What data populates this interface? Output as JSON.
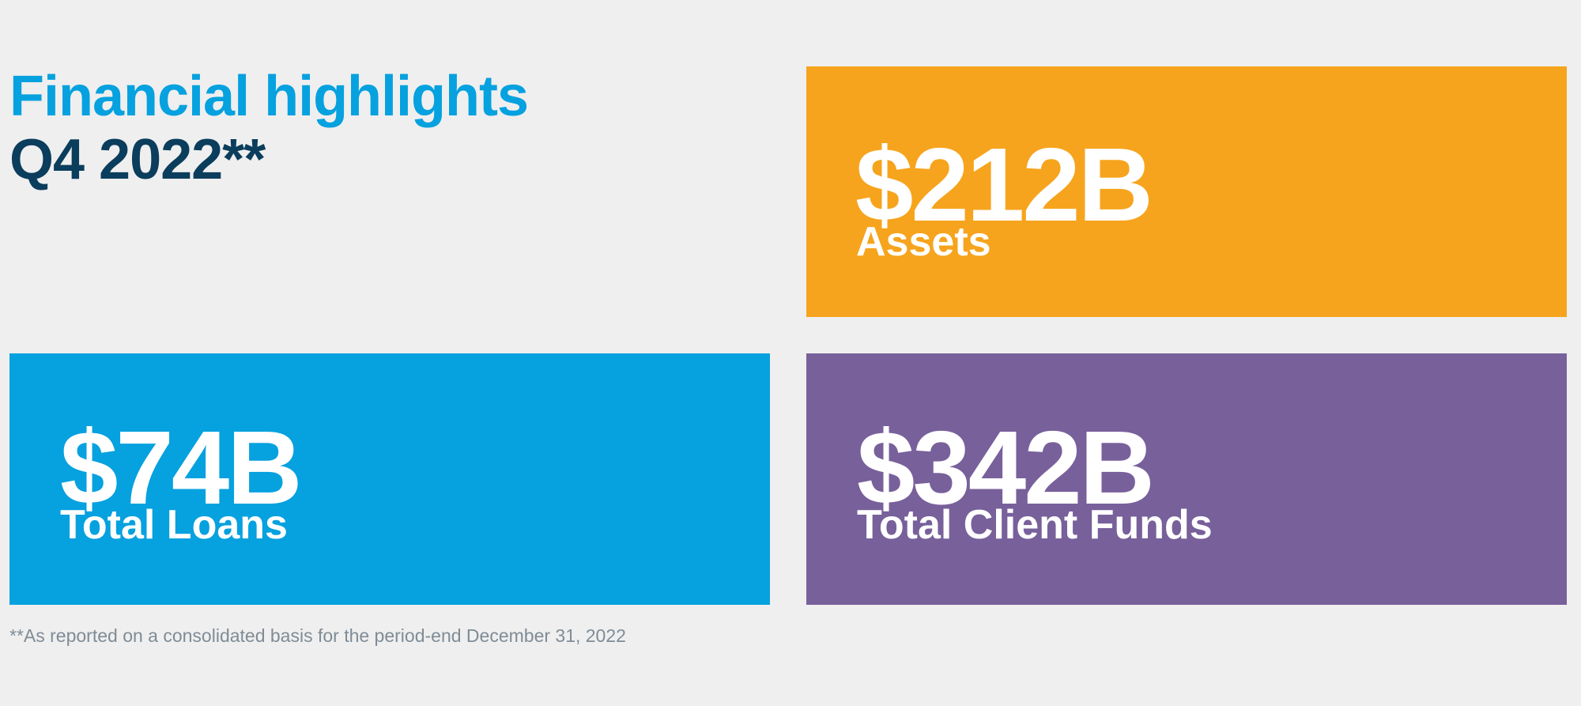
{
  "header": {
    "title": "Financial highlights",
    "subtitle": "Q4 2022**"
  },
  "highlights": [
    {
      "id": "assets",
      "value": "$212B",
      "label": "Assets",
      "color": "#f6a41d"
    },
    {
      "id": "loans",
      "value": "$74B",
      "label": "Total Loans",
      "color": "#06a1df"
    },
    {
      "id": "funds",
      "value": "$342B",
      "label": "Total Client Funds",
      "color": "#78609b"
    }
  ],
  "footnote": "**As reported on a consolidated basis for the period-end December 31, 2022"
}
